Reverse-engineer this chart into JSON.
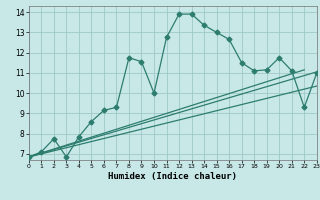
{
  "xlabel": "Humidex (Indice chaleur)",
  "bg_color": "#c8e8e8",
  "grid_color": "#a0c8c8",
  "line_color": "#2d7d6e",
  "xlim": [
    0,
    23
  ],
  "ylim": [
    6.7,
    14.3
  ],
  "xticks": [
    0,
    1,
    2,
    3,
    4,
    5,
    6,
    7,
    8,
    9,
    10,
    11,
    12,
    13,
    14,
    15,
    16,
    17,
    18,
    19,
    20,
    21,
    22,
    23
  ],
  "yticks": [
    7,
    8,
    9,
    10,
    11,
    12,
    13,
    14
  ],
  "curve1_x": [
    0,
    1,
    2,
    3,
    4,
    5,
    6,
    7,
    8,
    9,
    10,
    11,
    12,
    13,
    14,
    15,
    16,
    17,
    18,
    19,
    20,
    21,
    22,
    23
  ],
  "curve1_y": [
    6.85,
    7.1,
    7.75,
    6.85,
    7.85,
    8.6,
    9.15,
    9.3,
    11.75,
    11.55,
    10.0,
    12.75,
    13.9,
    13.9,
    13.35,
    13.0,
    12.65,
    11.5,
    11.1,
    11.15,
    11.75,
    11.1,
    9.3,
    11.0
  ],
  "line2_x": [
    0,
    23
  ],
  "line2_y": [
    6.85,
    11.05
  ],
  "line3_x": [
    0,
    22
  ],
  "line3_y": [
    6.85,
    11.15
  ],
  "line4_x": [
    0,
    23
  ],
  "line4_y": [
    6.85,
    10.35
  ]
}
